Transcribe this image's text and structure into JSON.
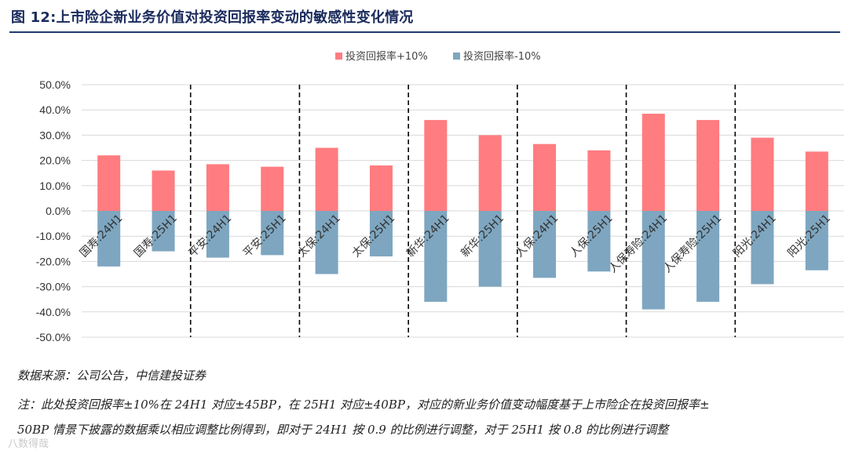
{
  "title": "图 12:上市险企新业务价值对投资回报率变动的敏感性变化情况",
  "chart_data": {
    "type": "bar",
    "categories": [
      "国寿:24H1",
      "国寿:25H1",
      "平安:24H1",
      "平安:25H1",
      "太保:24H1",
      "太保:25H1",
      "新华:24H1",
      "新华:25H1",
      "人保:24H1",
      "人保:25H1",
      "人保寿险:24H1",
      "人保寿险:25H1",
      "阳光:24H1",
      "阳光:25H1"
    ],
    "series": [
      {
        "name": "投资回报率+10%",
        "color": "#ff7c80",
        "values": [
          22.0,
          16.0,
          18.5,
          17.5,
          25.0,
          18.0,
          36.0,
          30.0,
          26.5,
          24.0,
          38.5,
          36.0,
          29.0,
          23.5
        ]
      },
      {
        "name": "投资回报率-10%",
        "color": "#7ea6c0",
        "values": [
          -22.0,
          -16.0,
          -18.5,
          -17.5,
          -25.0,
          -18.0,
          -36.0,
          -30.0,
          -26.5,
          -24.0,
          -39.0,
          -36.0,
          -29.0,
          -23.5
        ]
      }
    ],
    "ylim": [
      -50,
      50
    ],
    "yticks": [
      "50.0%",
      "40.0%",
      "30.0%",
      "20.0%",
      "10.0%",
      "0.0%",
      "-10.0%",
      "-20.0%",
      "-30.0%",
      "-40.0%",
      "-50.0%"
    ],
    "grid": true,
    "legend": "top-center",
    "group_separators": "dashed vertical lines between companies"
  },
  "source": "数据来源：公司公告，中信建投证券",
  "note_line1": "注：此处投资回报率±10%在 24H1 对应±45BP，在 25H1 对应±40BP，对应的新业务价值变动幅度基于上市险企在投资回报率±",
  "note_line2": "50BP 情景下披露的数据乘以相应调整比例得到，即对于 24H1 按 0.9 的比例进行调整，对于 25H1 按 0.8 的比例进行调整",
  "watermark": "八数得哉"
}
